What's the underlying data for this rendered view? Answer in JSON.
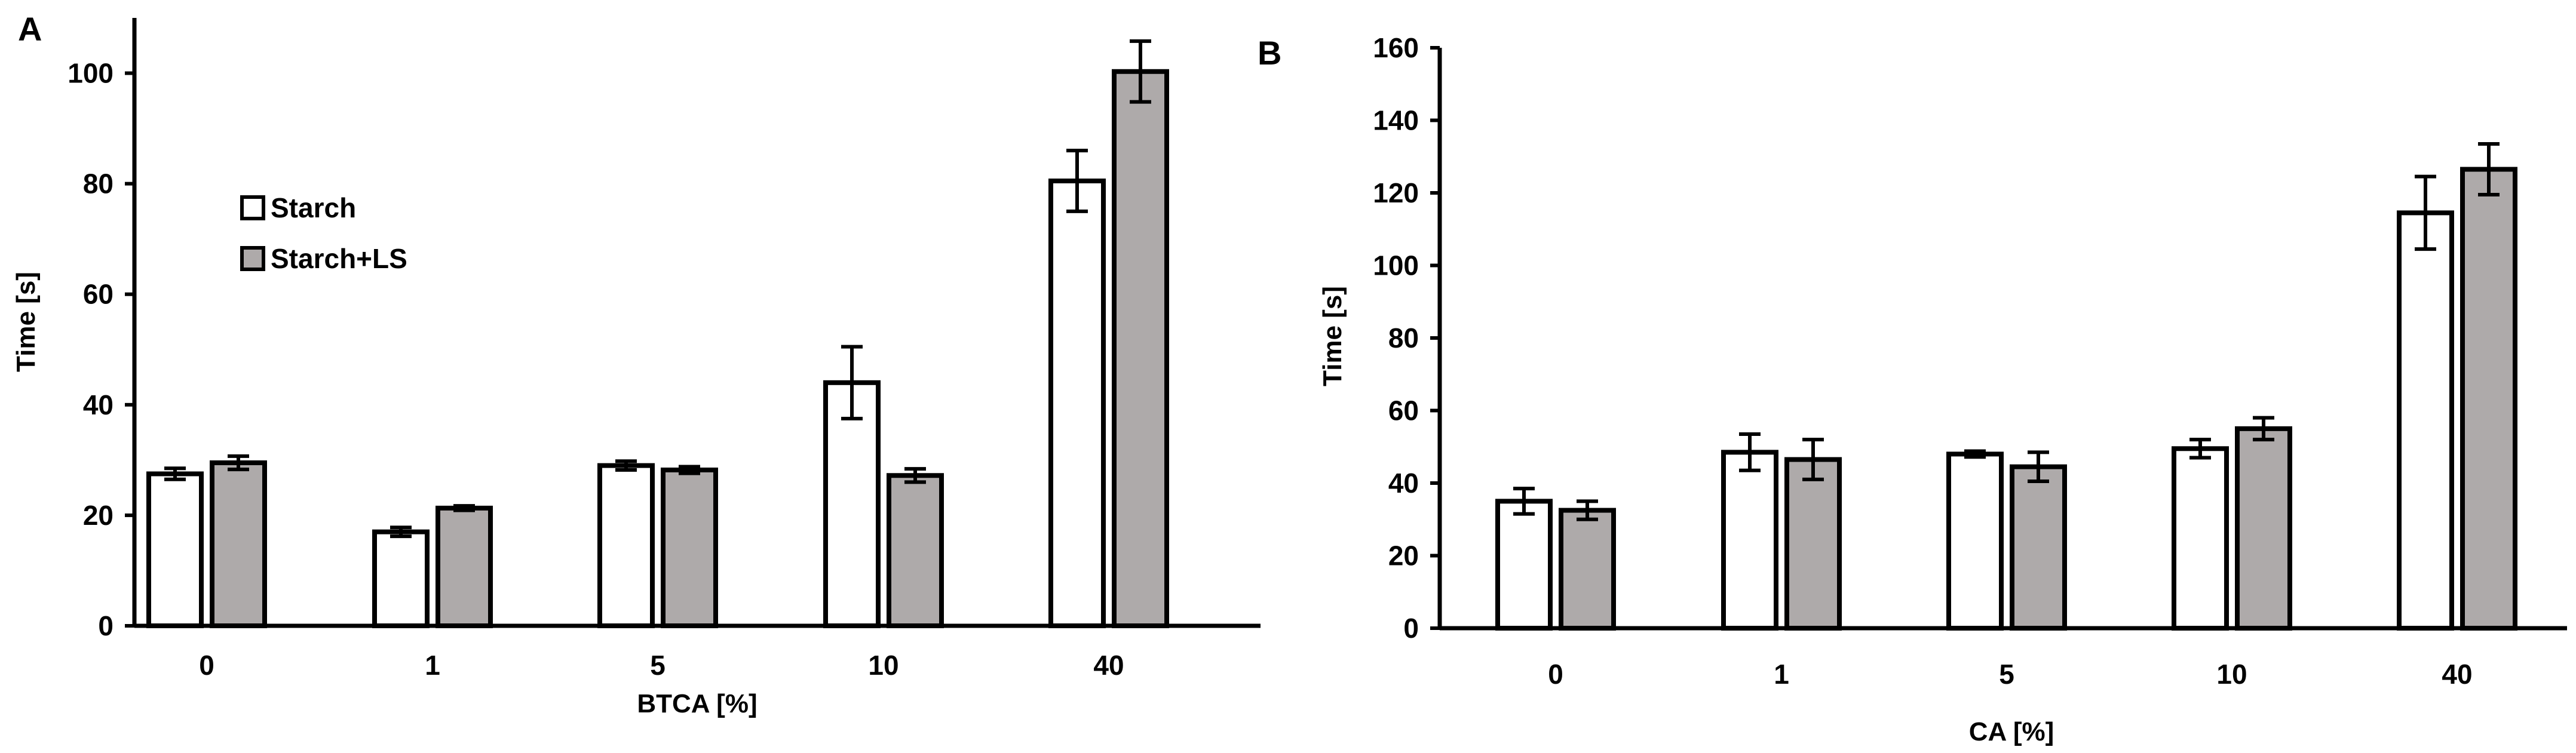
{
  "chart_data": [
    {
      "panel_label": "A",
      "type": "bar",
      "categories": [
        "0",
        "1",
        "5",
        "10",
        "40"
      ],
      "xlabel": "BTCA [%]",
      "ylabel": "Time [s]",
      "ylim": [
        0,
        110
      ],
      "yticks": [
        0,
        20,
        40,
        60,
        80,
        100
      ],
      "legend": "upper-left",
      "series": [
        {
          "name": "Starch",
          "color": "#ffffff",
          "values": [
            27.5,
            17,
            29,
            44,
            80.5
          ],
          "errors": [
            1,
            0.8,
            0.8,
            6.5,
            5.5
          ]
        },
        {
          "name": "Starch+LS",
          "color": "#aeaaaa",
          "values": [
            29.5,
            21.3,
            28.2,
            27.2,
            100.3
          ],
          "errors": [
            1.2,
            0.4,
            0.6,
            1.2,
            5.5
          ]
        }
      ]
    },
    {
      "panel_label": "B",
      "type": "bar",
      "categories": [
        "0",
        "1",
        "5",
        "10",
        "40"
      ],
      "xlabel": "CA [%]",
      "ylabel": "Time [s]",
      "ylim": [
        0,
        160
      ],
      "yticks": [
        0,
        20,
        40,
        60,
        80,
        100,
        120,
        140,
        160
      ],
      "series": [
        {
          "color": "#ffffff",
          "values": [
            35,
            48.5,
            48,
            49.5,
            114.5
          ],
          "errors": [
            3.5,
            5,
            0.8,
            2.5,
            10
          ]
        },
        {
          "color": "#aeaaaa",
          "values": [
            32.5,
            46.5,
            44.5,
            55,
            126.5
          ],
          "errors": [
            2.5,
            5.5,
            4,
            3,
            7
          ]
        }
      ]
    }
  ]
}
